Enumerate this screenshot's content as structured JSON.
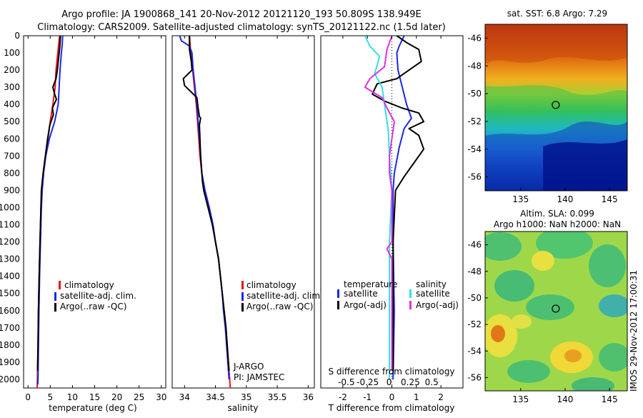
{
  "header": {
    "line1": "Argo profile: JA 1900868_141 20-Nov-2012 20121120_193 50.809S 138.949E",
    "line2": "Climatology: CARS2009. Satellite-adjusted climatology: synTS_20121122.nc (1.5d later)"
  },
  "depth_ticks": [
    0,
    100,
    200,
    300,
    400,
    500,
    600,
    700,
    800,
    900,
    1000,
    1100,
    1200,
    1300,
    1400,
    1500,
    1600,
    1700,
    1800,
    1900,
    2000
  ],
  "colors": {
    "climatology": "#e8141a",
    "satellite_adj": "#1a28e0",
    "argo": "#000000",
    "satellite_s": "#33e0e0",
    "argo_s": "#e030e0"
  },
  "chart_data": [
    {
      "type": "line",
      "id": "temperature",
      "xlabel": "temperature (deg C)",
      "xlim": [
        -1,
        31
      ],
      "xticks": [
        0,
        5,
        10,
        15,
        20,
        25,
        30
      ],
      "ylim": [
        2050,
        0
      ],
      "legend": [
        "climatology",
        "satellite-adj. clim.",
        "Argo(..raw -QC)"
      ],
      "series": [
        {
          "name": "climatology",
          "color": "#e8141a",
          "points": [
            [
              7.1,
              0
            ],
            [
              6.9,
              50
            ],
            [
              6.7,
              100
            ],
            [
              6.5,
              150
            ],
            [
              6.3,
              200
            ],
            [
              6.1,
              300
            ],
            [
              5.6,
              400
            ],
            [
              5.0,
              500
            ],
            [
              4.5,
              600
            ],
            [
              3.9,
              700
            ],
            [
              3.4,
              800
            ],
            [
              3.1,
              900
            ],
            [
              2.9,
              1000
            ],
            [
              2.7,
              1200
            ],
            [
              2.5,
              1400
            ],
            [
              2.35,
              1600
            ],
            [
              2.25,
              1800
            ],
            [
              2.1,
              2000
            ],
            [
              2.05,
              2050
            ]
          ]
        },
        {
          "name": "satellite-adj. clim.",
          "color": "#1a28e0",
          "points": [
            [
              7.8,
              0
            ],
            [
              7.7,
              50
            ],
            [
              7.5,
              100
            ],
            [
              7.2,
              200
            ],
            [
              7.0,
              300
            ],
            [
              6.8,
              400
            ],
            [
              6.0,
              500
            ],
            [
              4.8,
              600
            ],
            [
              4.0,
              700
            ],
            [
              3.5,
              800
            ],
            [
              3.2,
              900
            ],
            [
              3.0,
              1000
            ],
            [
              2.8,
              1200
            ],
            [
              2.6,
              1400
            ],
            [
              2.45,
              1600
            ],
            [
              2.35,
              1800
            ],
            [
              2.25,
              2000
            ],
            [
              2.2,
              2030
            ]
          ]
        },
        {
          "name": "Argo(..raw -QC)",
          "color": "#000000",
          "points": [
            [
              7.3,
              0
            ],
            [
              7.2,
              50
            ],
            [
              7.0,
              100
            ],
            [
              6.8,
              150
            ],
            [
              6.6,
              200
            ],
            [
              6.3,
              250
            ],
            [
              5.6,
              300
            ],
            [
              6.0,
              340
            ],
            [
              6.4,
              370
            ],
            [
              5.5,
              420
            ],
            [
              5.7,
              460
            ],
            [
              4.9,
              520
            ],
            [
              4.4,
              600
            ],
            [
              3.9,
              700
            ],
            [
              3.4,
              800
            ],
            [
              3.0,
              900
            ],
            [
              2.9,
              1000
            ],
            [
              2.7,
              1200
            ],
            [
              2.5,
              1400
            ],
            [
              2.35,
              1600
            ],
            [
              2.25,
              1800
            ],
            [
              2.15,
              1950
            ]
          ]
        }
      ]
    },
    {
      "type": "line",
      "id": "salinity",
      "xlabel": "salinity",
      "xlim": [
        33.8,
        36.1
      ],
      "xticks": [
        34,
        34.5,
        35,
        35.5,
        36
      ],
      "ylim": [
        2050,
        0
      ],
      "legend": [
        "climatology",
        "satellite-adj. clim.",
        "Argo(..raw -QC)"
      ],
      "annotations": [
        "J-ARGO",
        "PI: JAMSTEC"
      ],
      "series": [
        {
          "name": "climatology",
          "color": "#e8141a",
          "points": [
            [
              34.08,
              0
            ],
            [
              34.1,
              100
            ],
            [
              34.13,
              200
            ],
            [
              34.16,
              300
            ],
            [
              34.19,
              400
            ],
            [
              34.21,
              500
            ],
            [
              34.23,
              600
            ],
            [
              34.25,
              700
            ],
            [
              34.28,
              800
            ],
            [
              34.33,
              900
            ],
            [
              34.4,
              1000
            ],
            [
              34.46,
              1100
            ],
            [
              34.5,
              1200
            ],
            [
              34.55,
              1300
            ],
            [
              34.58,
              1400
            ],
            [
              34.61,
              1500
            ],
            [
              34.64,
              1600
            ],
            [
              34.67,
              1700
            ],
            [
              34.69,
              1800
            ],
            [
              34.71,
              1900
            ],
            [
              34.73,
              2000
            ],
            [
              34.74,
              2050
            ]
          ]
        },
        {
          "name": "satellite-adj. clim.",
          "color": "#1a28e0",
          "points": [
            [
              33.92,
              0
            ],
            [
              33.95,
              30
            ],
            [
              34.08,
              60
            ],
            [
              34.12,
              100
            ],
            [
              34.14,
              200
            ],
            [
              34.17,
              300
            ],
            [
              34.2,
              400
            ],
            [
              34.22,
              500
            ],
            [
              34.24,
              600
            ],
            [
              34.26,
              700
            ],
            [
              34.28,
              800
            ],
            [
              34.33,
              900
            ],
            [
              34.4,
              1000
            ],
            [
              34.46,
              1100
            ],
            [
              34.5,
              1200
            ],
            [
              34.55,
              1300
            ],
            [
              34.58,
              1400
            ],
            [
              34.61,
              1500
            ],
            [
              34.63,
              1600
            ],
            [
              34.66,
              1700
            ],
            [
              34.68,
              1800
            ],
            [
              34.7,
              1900
            ],
            [
              34.72,
              2000
            ]
          ]
        },
        {
          "name": "Argo(..raw -QC)",
          "color": "#000000",
          "points": [
            [
              34.08,
              0
            ],
            [
              34.08,
              80
            ],
            [
              34.11,
              150
            ],
            [
              34.12,
              200
            ],
            [
              33.98,
              250
            ],
            [
              34.0,
              290
            ],
            [
              34.2,
              360
            ],
            [
              34.22,
              420
            ],
            [
              34.24,
              470
            ],
            [
              34.26,
              480
            ],
            [
              34.24,
              520
            ],
            [
              34.25,
              600
            ],
            [
              34.26,
              700
            ],
            [
              34.28,
              800
            ],
            [
              34.29,
              850
            ],
            [
              34.31,
              900
            ],
            [
              34.38,
              1000
            ],
            [
              34.45,
              1100
            ],
            [
              34.5,
              1200
            ],
            [
              34.55,
              1300
            ],
            [
              34.58,
              1400
            ],
            [
              34.61,
              1500
            ],
            [
              34.64,
              1600
            ],
            [
              34.67,
              1700
            ],
            [
              34.69,
              1800
            ],
            [
              34.71,
              1900
            ],
            [
              34.72,
              1950
            ]
          ]
        }
      ]
    },
    {
      "type": "line",
      "id": "differences",
      "xlabel": "T difference from climatology",
      "xlim": [
        -2.9,
        2.9
      ],
      "xticks": [
        -2,
        -1,
        0,
        1,
        2
      ],
      "top_axis_label": "S difference from climatology",
      "top_xticks": [
        "-0.5",
        "-0.25",
        "0",
        "0.25",
        "0.5"
      ],
      "ylim": [
        2050,
        0
      ],
      "legend_temperature_title": "temperature",
      "legend_salinity_title": "salinity",
      "legend": [
        "satellite",
        "Argo(-adj)",
        "satellite",
        "Argo(-adj)"
      ],
      "series": [
        {
          "name": "satellite",
          "color": "#1a28e0",
          "points": [
            [
              0.5,
              0
            ],
            [
              0.3,
              60
            ],
            [
              0.2,
              100
            ],
            [
              0.25,
              200
            ],
            [
              0.6,
              400
            ],
            [
              0.8,
              480
            ],
            [
              0.5,
              540
            ],
            [
              0.3,
              650
            ],
            [
              0.1,
              800
            ],
            [
              0.05,
              900
            ],
            [
              0.05,
              1200
            ],
            [
              0.1,
              1600
            ],
            [
              0.05,
              2000
            ]
          ]
        },
        {
          "name": "Argo(-adj)",
          "color": "#000000",
          "points": [
            [
              0.2,
              0
            ],
            [
              0.6,
              40
            ],
            [
              1.1,
              80
            ],
            [
              1.2,
              150
            ],
            [
              0.7,
              200
            ],
            [
              0.2,
              250
            ],
            [
              -0.6,
              280
            ],
            [
              -0.8,
              340
            ],
            [
              -0.3,
              380
            ],
            [
              0.4,
              420
            ],
            [
              1.1,
              450
            ],
            [
              1.3,
              500
            ],
            [
              0.7,
              540
            ],
            [
              1.1,
              580
            ],
            [
              1.3,
              660
            ],
            [
              0.9,
              740
            ],
            [
              0.5,
              820
            ],
            [
              0.15,
              900
            ],
            [
              0.05,
              1200
            ],
            [
              0.05,
              1600
            ],
            [
              0.05,
              1950
            ]
          ]
        },
        {
          "name": "satellite S",
          "color": "#33e0e0",
          "points": [
            [
              -1.1,
              0
            ],
            [
              -0.9,
              60
            ],
            [
              -0.5,
              120
            ],
            [
              -0.7,
              220
            ],
            [
              -0.4,
              300
            ],
            [
              -0.3,
              400
            ],
            [
              -0.15,
              550
            ],
            [
              -0.1,
              700
            ],
            [
              0.0,
              900
            ],
            [
              -0.1,
              1200
            ],
            [
              -0.1,
              1600
            ],
            [
              -0.1,
              2000
            ]
          ]
        },
        {
          "name": "Argo(-adj) S",
          "color": "#e030e0",
          "points": [
            [
              0.0,
              0
            ],
            [
              -0.2,
              80
            ],
            [
              -0.3,
              180
            ],
            [
              -0.9,
              250
            ],
            [
              -1.1,
              300
            ],
            [
              -0.4,
              360
            ],
            [
              -0.2,
              420
            ],
            [
              0.1,
              500
            ],
            [
              0.0,
              600
            ],
            [
              -0.1,
              700
            ],
            [
              -0.1,
              800
            ],
            [
              0.0,
              900
            ],
            [
              0.0,
              1200
            ],
            [
              -0.2,
              1240
            ],
            [
              0.0,
              1300
            ],
            [
              0.0,
              1600
            ],
            [
              0.0,
              1950
            ]
          ]
        }
      ]
    },
    {
      "type": "heatmap",
      "id": "sst_map",
      "title": "sat. SST: 6.8 Argo: 7.29",
      "xticks": [
        135,
        140,
        145
      ],
      "yticks": [
        -46,
        -48,
        -50,
        -52,
        -54,
        -56
      ],
      "xlim": [
        131,
        147
      ],
      "ylim": [
        -57,
        -45
      ],
      "marker": [
        138.949,
        -50.809
      ]
    },
    {
      "type": "heatmap",
      "id": "sla_map",
      "title": "Altim. SLA: 0.099",
      "subtitle": "Argo h1000: NaN h2000: NaN",
      "xticks": [
        135,
        140,
        145
      ],
      "yticks": [
        -46,
        -48,
        -50,
        -52,
        -54,
        -56
      ],
      "xlim": [
        131,
        147
      ],
      "ylim": [
        -57,
        -45
      ],
      "marker": [
        138.949,
        -50.809
      ]
    }
  ],
  "side_stamp": "IMOS 29-Nov-2012 17:00:31"
}
